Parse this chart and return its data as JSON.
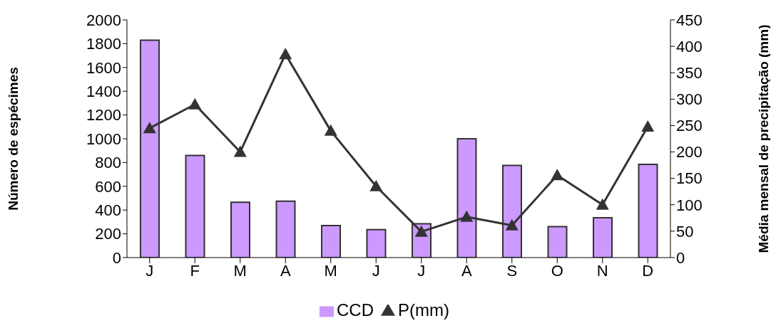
{
  "chart_data": {
    "type": "bar",
    "categories": [
      "J",
      "F",
      "M",
      "A",
      "M",
      "J",
      "J",
      "A",
      "S",
      "O",
      "N",
      "D"
    ],
    "ylabel": "Número de espécimes",
    "y2label": "Média mensal de precipitação (mm)",
    "series": [
      {
        "name": "CCD",
        "color": "#cc99ff",
        "values": [
          1830,
          860,
          465,
          475,
          270,
          235,
          285,
          1000,
          775,
          260,
          335,
          785
        ]
      },
      {
        "name": "P(mm)",
        "type": "line",
        "axis": "y2",
        "color": "#333333",
        "marker": "triangle",
        "values": [
          245,
          290,
          200,
          385,
          240,
          135,
          49,
          77,
          61,
          156,
          100,
          248
        ]
      }
    ],
    "ylim": [
      0,
      2000
    ],
    "yticks": [
      0,
      200,
      400,
      600,
      800,
      1000,
      1200,
      1400,
      1600,
      1800,
      2000
    ],
    "y2lim": [
      0,
      450
    ],
    "y2ticks": [
      0,
      50,
      100,
      150,
      200,
      250,
      300,
      350,
      400,
      450
    ],
    "legend": "bottom",
    "grid": false
  }
}
